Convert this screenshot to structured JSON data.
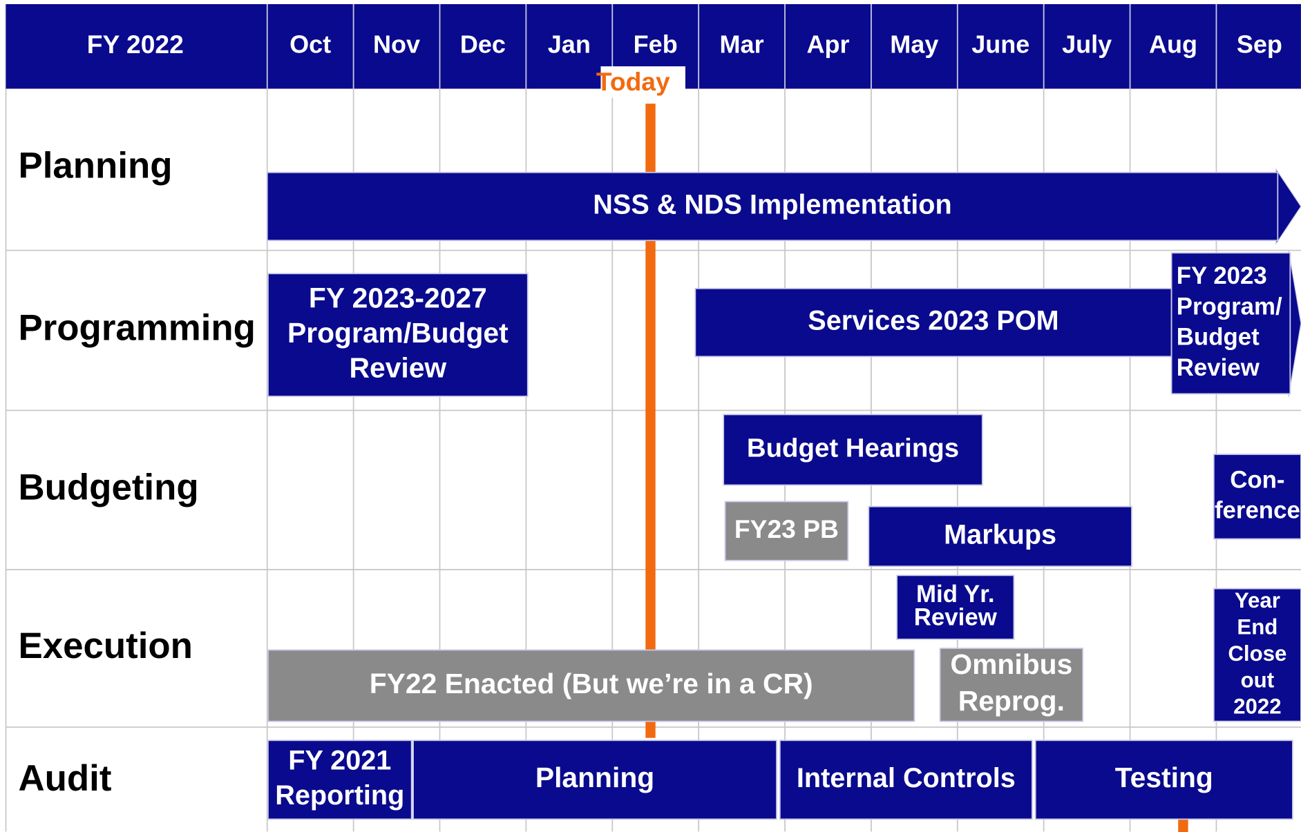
{
  "header": {
    "title": "FY 2022",
    "months": [
      "Oct",
      "Nov",
      "Dec",
      "Jan",
      "Feb",
      "Mar",
      "Apr",
      "May",
      "June",
      "July",
      "Aug",
      "Sep"
    ]
  },
  "today": "Today",
  "rows": [
    {
      "label": "Planning"
    },
    {
      "label": "Programming"
    },
    {
      "label": "Budgeting"
    },
    {
      "label": "Execution"
    },
    {
      "label": "Audit"
    }
  ],
  "bars": [
    {
      "lines": [
        "NSS & NDS Implementation"
      ]
    },
    {
      "lines": [
        "FY 2023-2027",
        "Program/Budget",
        "Review"
      ]
    },
    {
      "lines": [
        "Services 2023 POM"
      ]
    },
    {
      "lines": [
        "FY 2023",
        "Program/",
        "Budget",
        "Review"
      ]
    },
    {
      "lines": [
        "Budget Hearings"
      ]
    },
    {
      "lines": [
        "FY23 PB"
      ]
    },
    {
      "lines": [
        "Markups"
      ]
    },
    {
      "lines": [
        "Con-",
        "ference"
      ]
    },
    {
      "lines": [
        "Mid Yr.",
        "Review"
      ]
    },
    {
      "lines": [
        "Year",
        "End",
        "Close",
        "out",
        "2022"
      ]
    },
    {
      "lines": [
        "FY22 Enacted (But we’re in a CR)"
      ]
    },
    {
      "lines": [
        "Omnibus",
        "Reprog."
      ]
    },
    {
      "lines": [
        "FY 2021",
        "Reporting"
      ]
    },
    {
      "lines": [
        "Planning"
      ]
    },
    {
      "lines": [
        "Internal Controls"
      ]
    },
    {
      "lines": [
        "Testing"
      ]
    }
  ]
}
